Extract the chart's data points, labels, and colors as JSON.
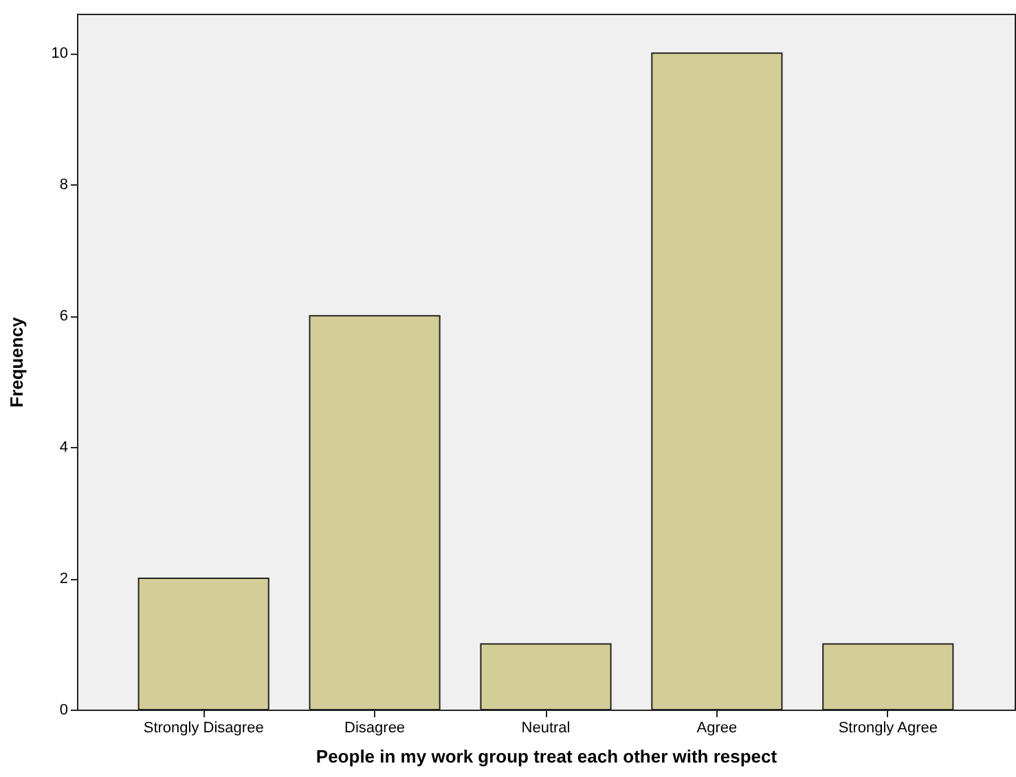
{
  "chart_data": {
    "type": "bar",
    "xlabel": "People in my work group treat each other with respect",
    "ylabel": "Frequency",
    "categories": [
      "Strongly Disagree",
      "Disagree",
      "Neutral",
      "Agree",
      "Strongly Agree"
    ],
    "values": [
      2,
      6,
      1,
      10,
      1
    ],
    "color": "#d3ce97",
    "ylim": [
      0,
      10.6
    ],
    "yticks": [
      0,
      2,
      4,
      6,
      8,
      10
    ],
    "grid": false
  }
}
